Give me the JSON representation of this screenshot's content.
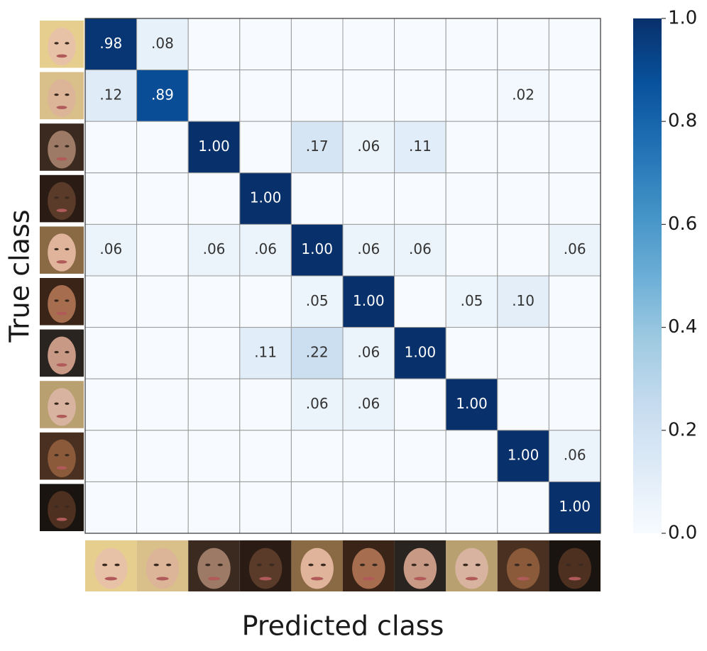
{
  "chart_data": {
    "type": "heatmap",
    "ylabel": "True class",
    "xlabel": "Predicted class",
    "colormap": "Blues",
    "clim": [
      0,
      1
    ],
    "cticks": [
      {
        "value": 0,
        "label": "0.0"
      },
      0.2,
      0.4,
      0.6,
      0.8,
      {
        "value": 1,
        "label": "1.0"
      }
    ],
    "values": [
      [
        0.98,
        0.08,
        0,
        0,
        0,
        0,
        0,
        0,
        0,
        0
      ],
      [
        0.12,
        0.89,
        0,
        0,
        0,
        0,
        0,
        0,
        0.02,
        0
      ],
      [
        0,
        0,
        1.0,
        0,
        0.17,
        0.06,
        0.11,
        0,
        0,
        0
      ],
      [
        0,
        0,
        0,
        1.0,
        0,
        0,
        0,
        0,
        0,
        0
      ],
      [
        0.06,
        0,
        0.06,
        0.06,
        1.0,
        0.06,
        0.06,
        0,
        0,
        0.06
      ],
      [
        0,
        0,
        0,
        0,
        0.05,
        1.0,
        0,
        0.05,
        0.1,
        0
      ],
      [
        0,
        0,
        0,
        0.11,
        0.22,
        0.06,
        1.0,
        0,
        0,
        0
      ],
      [
        0,
        0,
        0,
        0,
        0.06,
        0.06,
        0,
        1.0,
        0,
        0
      ],
      [
        0,
        0,
        0,
        0,
        0,
        0,
        0,
        0,
        1.0,
        0.06
      ],
      [
        0,
        0,
        0,
        0,
        0,
        0,
        0,
        0,
        0,
        1.0
      ]
    ],
    "value_labels": [
      [
        ".98",
        ".08",
        null,
        null,
        null,
        null,
        null,
        null,
        null,
        null
      ],
      [
        ".12",
        ".89",
        null,
        null,
        null,
        null,
        null,
        null,
        ".02",
        null
      ],
      [
        null,
        null,
        "1.00",
        null,
        ".17",
        ".06",
        ".11",
        null,
        null,
        null
      ],
      [
        null,
        null,
        null,
        "1.00",
        null,
        null,
        null,
        null,
        null,
        null
      ],
      [
        ".06",
        null,
        ".06",
        ".06",
        "1.00",
        ".06",
        ".06",
        null,
        null,
        ".06"
      ],
      [
        null,
        null,
        null,
        null,
        ".05",
        "1.00",
        null,
        ".05",
        ".10",
        null
      ],
      [
        null,
        null,
        null,
        ".11",
        ".22",
        ".06",
        "1.00",
        null,
        null,
        null
      ],
      [
        null,
        null,
        null,
        null,
        ".06",
        ".06",
        null,
        "1.00",
        null,
        null
      ],
      [
        null,
        null,
        null,
        null,
        null,
        null,
        null,
        null,
        "1.00",
        ".06"
      ],
      [
        null,
        null,
        null,
        null,
        null,
        null,
        null,
        null,
        null,
        "1.00"
      ]
    ]
  }
}
